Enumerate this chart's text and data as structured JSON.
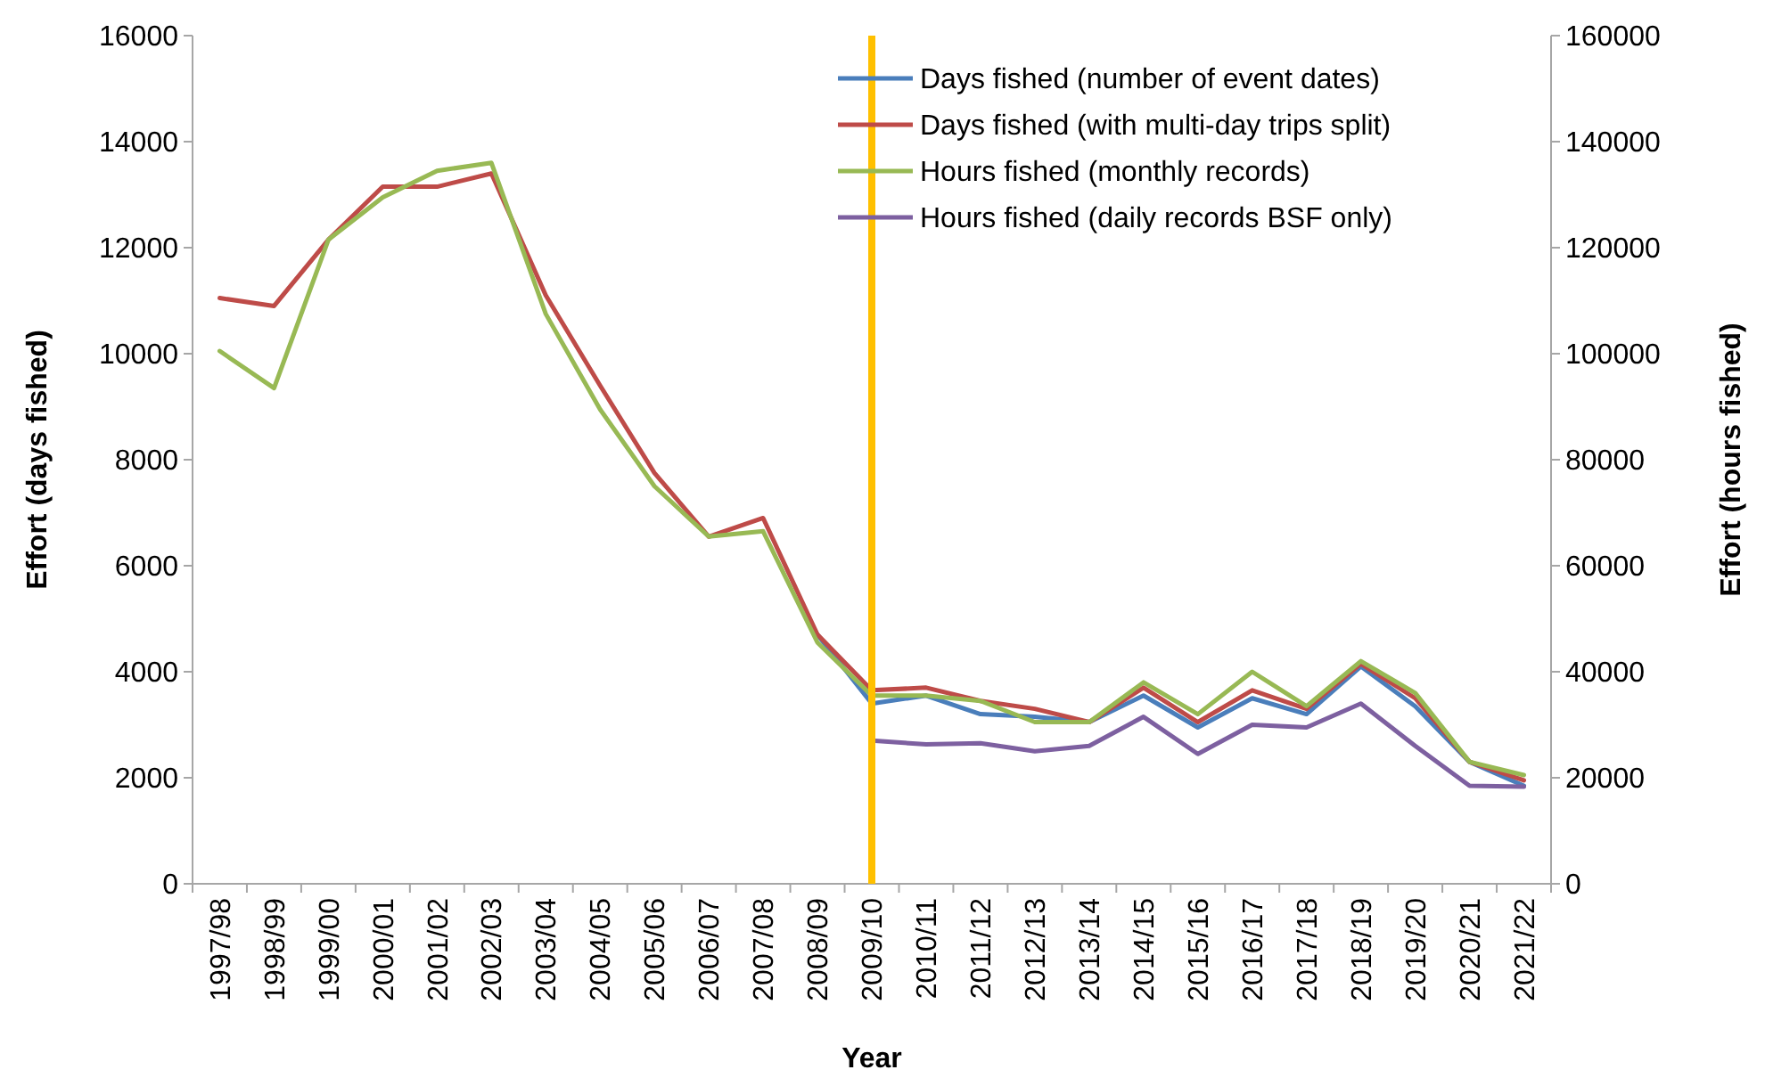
{
  "chart_data": {
    "type": "line",
    "xlabel": "Year",
    "ylabel": "Effort (days fished)",
    "y2label": "Effort (hours fished)",
    "categories": [
      "1997/98",
      "1998/99",
      "1999/00",
      "2000/01",
      "2001/02",
      "2002/03",
      "2003/04",
      "2004/05",
      "2005/06",
      "2006/07",
      "2007/08",
      "2008/09",
      "2009/10",
      "2010/11",
      "2011/12",
      "2012/13",
      "2013/14",
      "2014/15",
      "2015/16",
      "2016/17",
      "2017/18",
      "2018/19",
      "2019/20",
      "2020/21",
      "2021/22"
    ],
    "ylim": [
      0,
      16000
    ],
    "yticks": [
      0,
      2000,
      4000,
      6000,
      8000,
      10000,
      12000,
      14000,
      16000
    ],
    "y2lim": [
      0,
      160000
    ],
    "y2ticks": [
      0,
      20000,
      40000,
      60000,
      80000,
      100000,
      120000,
      140000,
      160000
    ],
    "grid": false,
    "legend": "top right",
    "marker": "none",
    "line_style": "solid",
    "ref_lines": [
      {
        "axis": "x",
        "value": "2009/10",
        "color": "#ffc000"
      }
    ],
    "series": [
      {
        "name": "Days fished (number of event dates)",
        "color": "#4a7ebb",
        "values": [
          null,
          null,
          null,
          null,
          null,
          null,
          null,
          null,
          null,
          null,
          null,
          4700,
          3400,
          3550,
          3200,
          3150,
          3050,
          3550,
          2950,
          3500,
          3200,
          4100,
          3350,
          2300,
          1850
        ]
      },
      {
        "name": "Days fished (with multi-day trips split)",
        "color": "#be4b48",
        "values": [
          11050,
          10900,
          12150,
          13150,
          13150,
          13400,
          11100,
          9400,
          7750,
          6550,
          6900,
          4700,
          3650,
          3700,
          3450,
          3300,
          3050,
          3700,
          3050,
          3650,
          3300,
          4150,
          3500,
          2300,
          1950
        ]
      },
      {
        "name": "Hours fished (monthly records)",
        "color": "#98b954",
        "axis": "y2",
        "values": [
          100500,
          93500,
          121500,
          129500,
          134500,
          136000,
          107500,
          89500,
          75000,
          65500,
          66500,
          45500,
          35500,
          35500,
          34500,
          30500,
          30500,
          38000,
          32000,
          40000,
          33500,
          42000,
          36000,
          23000,
          20500
        ]
      },
      {
        "name": "Hours fished (daily records BSF only)",
        "color": "#7d60a0",
        "axis": "y2",
        "values": [
          null,
          null,
          null,
          null,
          null,
          null,
          null,
          null,
          null,
          null,
          null,
          null,
          27000,
          26300,
          26500,
          25000,
          26000,
          31500,
          24500,
          30000,
          29500,
          34000,
          26000,
          18500,
          18300
        ]
      }
    ]
  }
}
